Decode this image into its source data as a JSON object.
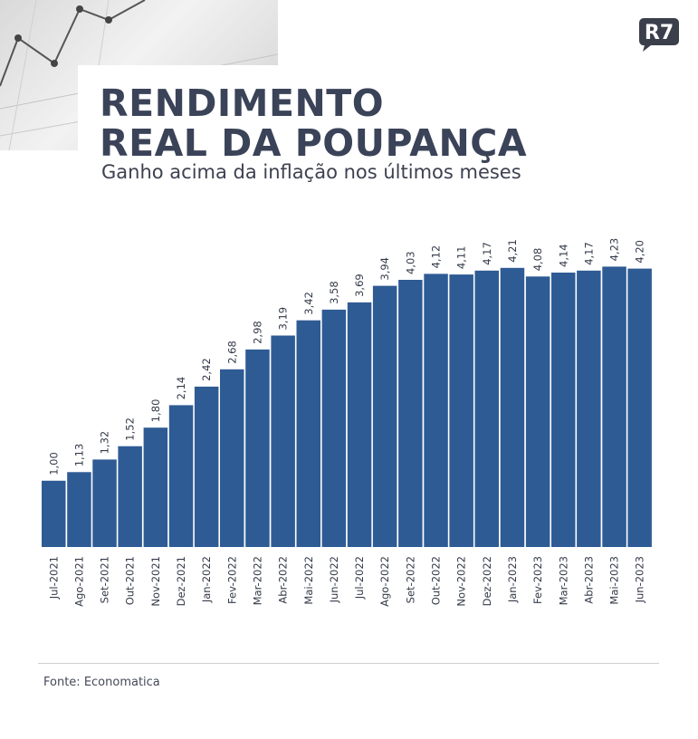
{
  "title_lines": [
    "RENDIMENTO",
    "REAL DA POUPANÇA"
  ],
  "subtitle": "Ganho acima da inflação nos últimos meses",
  "logo_text": "R7",
  "source": "Fonte: Economatica",
  "colors": {
    "bar": "#2e5b94",
    "title": "#3a4358",
    "logo": "#3a3f4b"
  },
  "chart_data": {
    "type": "bar",
    "title": "RENDIMENTO REAL DA POUPANÇA",
    "subtitle": "Ganho acima da inflação nos últimos meses",
    "categories": [
      "Jul-2021",
      "Ago-2021",
      "Set-2021",
      "Out-2021",
      "Nov-2021",
      "Dez-2021",
      "Jan-2022",
      "Fev-2022",
      "Mar-2022",
      "Abr-2022",
      "Mai-2022",
      "Jun-2022",
      "Jul-2022",
      "Ago-2022",
      "Set-2022",
      "Out-2022",
      "Nov-2022",
      "Dez-2022",
      "Jan-2023",
      "Fev-2023",
      "Mar-2023",
      "Abr-2023",
      "Mai-2023",
      "Jun-2023"
    ],
    "values": [
      1.0,
      1.13,
      1.32,
      1.52,
      1.8,
      2.14,
      2.42,
      2.68,
      2.98,
      3.19,
      3.42,
      3.58,
      3.69,
      3.94,
      4.03,
      4.12,
      4.11,
      4.17,
      4.21,
      4.08,
      4.14,
      4.17,
      4.23,
      4.2
    ],
    "value_labels": [
      "1,00",
      "1,13",
      "1,32",
      "1,52",
      "1,80",
      "2,14",
      "2,42",
      "2,68",
      "2,98",
      "3,19",
      "3,42",
      "3,58",
      "3,69",
      "3,94",
      "4,03",
      "4,12",
      "4,11",
      "4,17",
      "4,21",
      "4,08",
      "4,14",
      "4,17",
      "4,23",
      "4,20"
    ],
    "ylim": [
      0,
      4.5
    ],
    "grid": false,
    "legend": "none"
  }
}
